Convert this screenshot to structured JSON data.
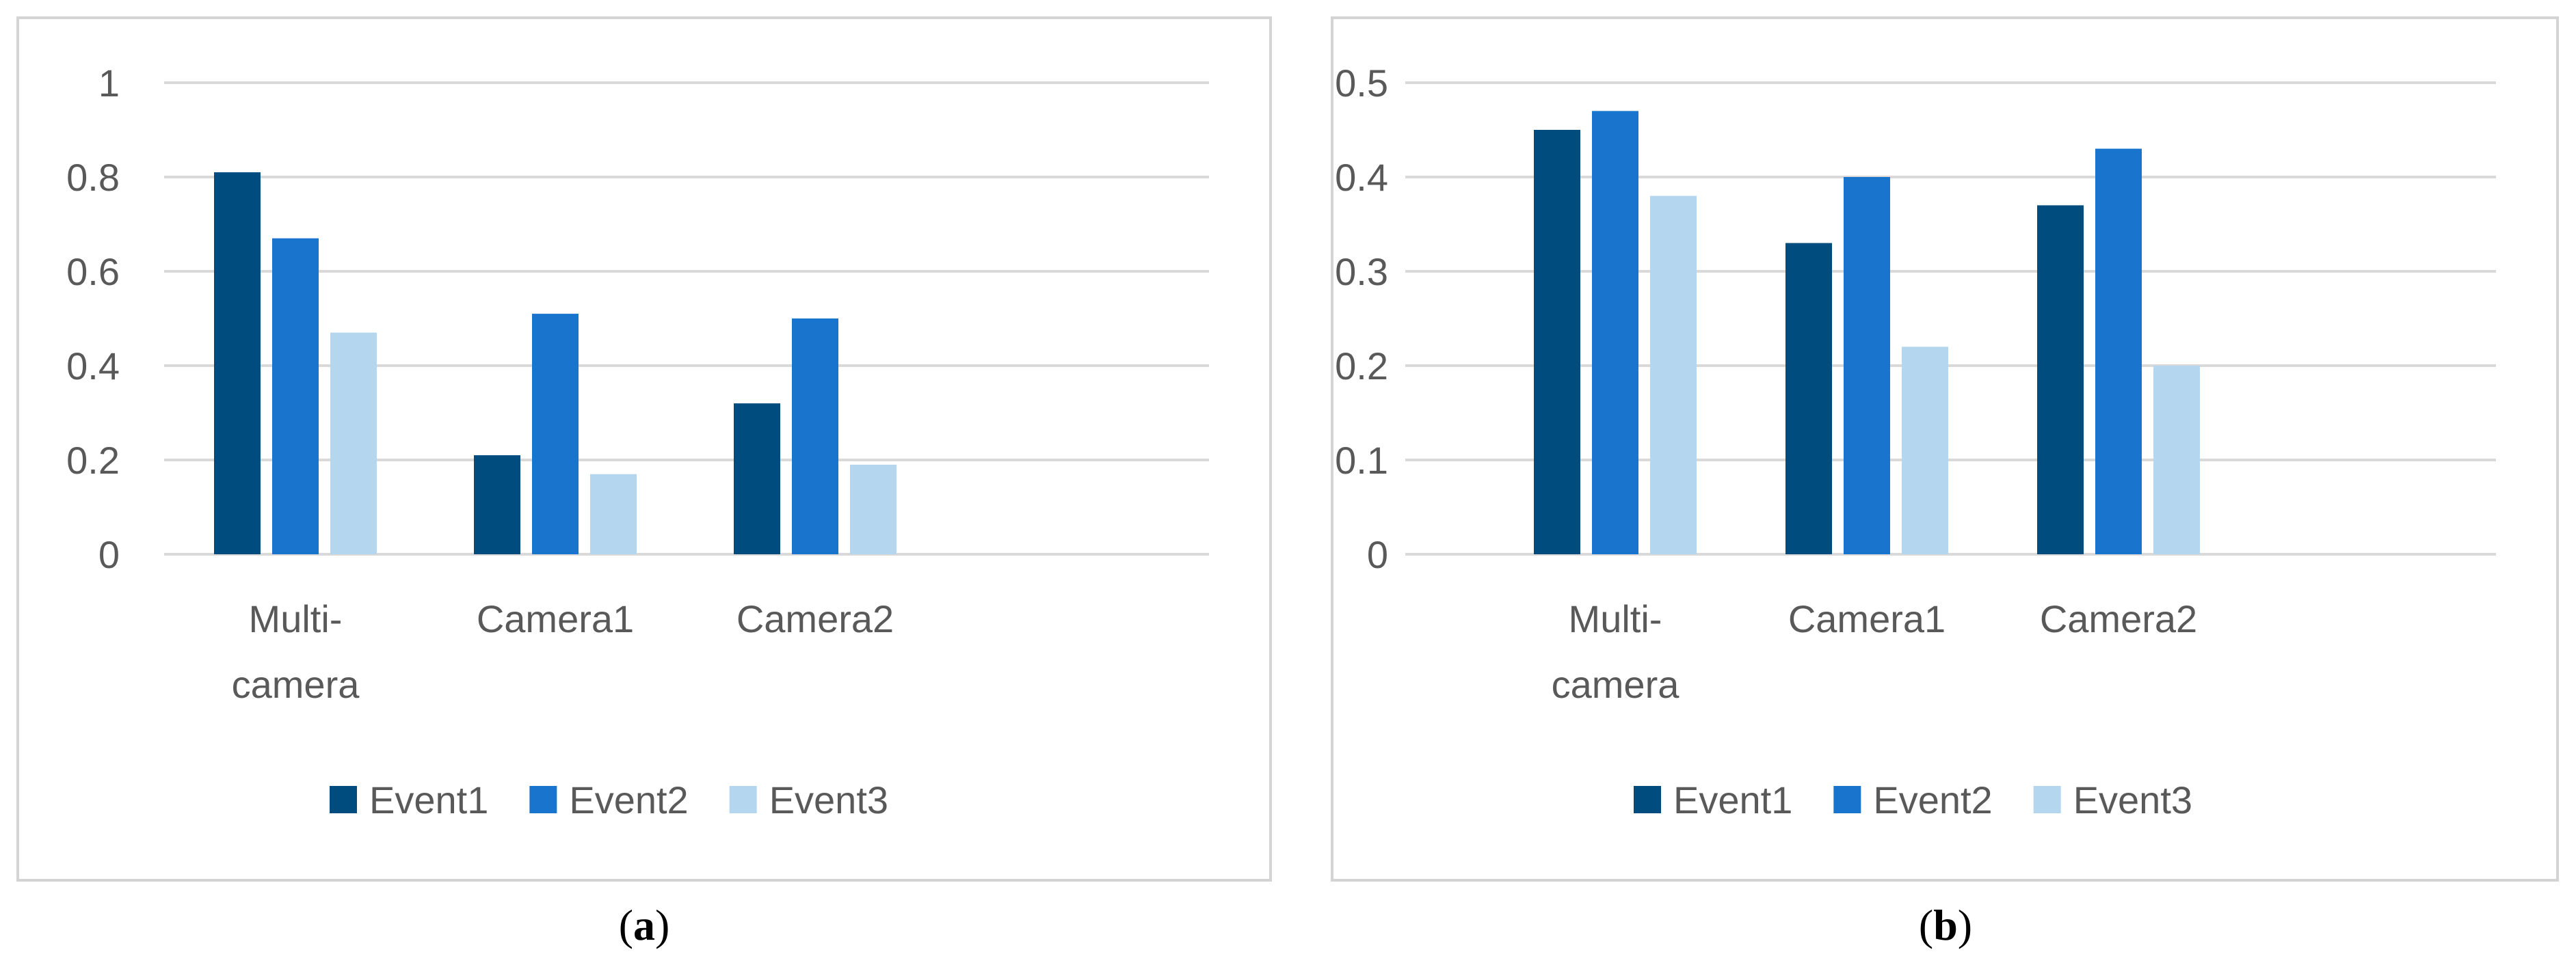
{
  "chart_data": [
    {
      "type": "bar",
      "caption": "(a)",
      "caption_letter": "a",
      "categories": [
        "Multi-camera",
        "Camera1",
        "Camera2"
      ],
      "category_lines": [
        [
          "Multi-",
          "camera"
        ],
        [
          "Camera1"
        ],
        [
          "Camera2"
        ]
      ],
      "series": [
        {
          "name": "Event1",
          "color": "#004c7e",
          "values": [
            0.81,
            0.21,
            0.32
          ]
        },
        {
          "name": "Event2",
          "color": "#1874cc",
          "values": [
            0.67,
            0.51,
            0.5
          ]
        },
        {
          "name": "Event3",
          "color": "#b4d7ef",
          "values": [
            0.47,
            0.17,
            0.19
          ]
        }
      ],
      "ylim": [
        0,
        1
      ],
      "yticks": [
        0,
        0.2,
        0.4,
        0.6,
        0.8,
        1
      ],
      "ytick_labels": [
        "0",
        "0.2",
        "0.4",
        "0.6",
        "0.8",
        "1"
      ],
      "grid": true,
      "legend_position": "bottom"
    },
    {
      "type": "bar",
      "caption": "(b)",
      "caption_letter": "b",
      "categories": [
        "Multi-camera",
        "Camera1",
        "Camera2"
      ],
      "category_lines": [
        [
          "Multi-",
          "camera"
        ],
        [
          "Camera1"
        ],
        [
          "Camera2"
        ]
      ],
      "series": [
        {
          "name": "Event1",
          "color": "#004c7e",
          "values": [
            0.45,
            0.33,
            0.37
          ]
        },
        {
          "name": "Event2",
          "color": "#1874cc",
          "values": [
            0.47,
            0.4,
            0.43
          ]
        },
        {
          "name": "Event3",
          "color": "#b4d7ef",
          "values": [
            0.38,
            0.22,
            0.2
          ]
        }
      ],
      "ylim": [
        0,
        0.5
      ],
      "yticks": [
        0,
        0.1,
        0.2,
        0.3,
        0.4,
        0.5
      ],
      "ytick_labels": [
        "0",
        "0.1",
        "0.2",
        "0.3",
        "0.4",
        "0.5"
      ],
      "grid": true,
      "legend_position": "bottom"
    }
  ]
}
